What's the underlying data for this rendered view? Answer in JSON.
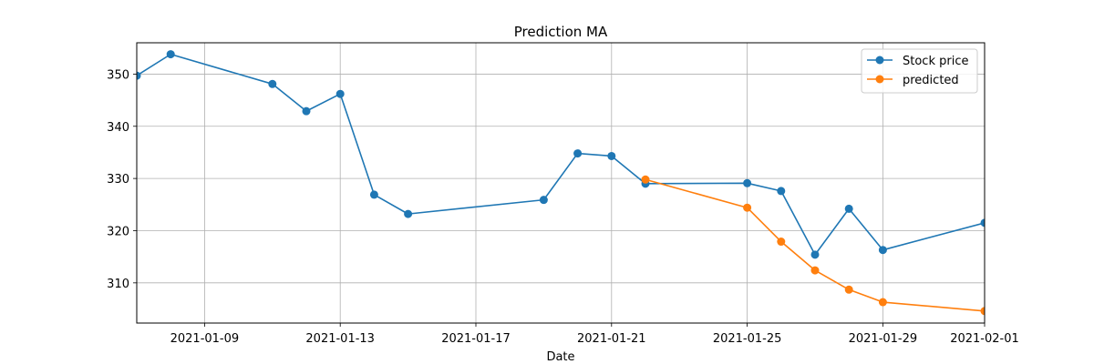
{
  "chart_data": {
    "type": "line",
    "title": "Prediction MA",
    "xlabel": "Date",
    "ylabel": "",
    "grid": true,
    "legend_position": "top-right",
    "xlim": [
      "2021-01-07",
      "2021-02-01"
    ],
    "ylim": [
      302.3,
      356.0
    ],
    "x_ticks": [
      "2021-01-09",
      "2021-01-13",
      "2021-01-17",
      "2021-01-21",
      "2021-01-25",
      "2021-01-29",
      "2021-02-01"
    ],
    "y_ticks": [
      310,
      320,
      330,
      340,
      350
    ],
    "series": [
      {
        "name": "Stock price",
        "color": "#1f77b4",
        "marker": "circle",
        "x": [
          "2021-01-07",
          "2021-01-08",
          "2021-01-11",
          "2021-01-12",
          "2021-01-13",
          "2021-01-14",
          "2021-01-15",
          "2021-01-19",
          "2021-01-20",
          "2021-01-21",
          "2021-01-22",
          "2021-01-25",
          "2021-01-26",
          "2021-01-27",
          "2021-01-28",
          "2021-01-29",
          "2021-02-01"
        ],
        "y": [
          349.7,
          353.8,
          348.1,
          342.9,
          346.2,
          326.9,
          323.2,
          325.9,
          334.8,
          334.3,
          329.0,
          329.1,
          327.6,
          315.4,
          324.2,
          316.3,
          321.5
        ]
      },
      {
        "name": "predicted",
        "color": "#ff7f0e",
        "marker": "circle",
        "x": [
          "2021-01-22",
          "2021-01-25",
          "2021-01-26",
          "2021-01-27",
          "2021-01-28",
          "2021-01-29",
          "2021-02-01"
        ],
        "y": [
          329.8,
          324.4,
          317.9,
          312.4,
          308.7,
          306.3,
          304.6
        ]
      }
    ]
  }
}
